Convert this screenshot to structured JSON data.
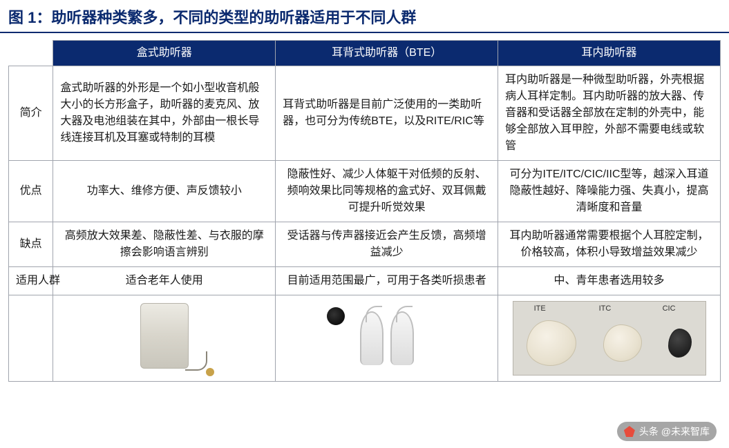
{
  "title": "图 1：助听器种类繁多，不同的类型的助听器适用于不同人群",
  "colors": {
    "brand_navy": "#0b2a6f",
    "border_gray": "#a0a4ad",
    "text": "#1a1a1a",
    "bg": "#ffffff"
  },
  "table": {
    "columns": [
      "盒式助听器",
      "耳背式助听器（BTE）",
      "耳内助听器"
    ],
    "row_headers": [
      "简介",
      "优点",
      "缺点",
      "适用人群"
    ],
    "rows": [
      [
        "盒式助听器的外形是一个如小型收音机般大小的长方形盒子，助听器的麦克风、放大器及电池组装在其中，外部由一根长导线连接耳机及耳塞或特制的耳模",
        "耳背式助听器是目前广泛使用的一类助听器，也可分为传统BTE，以及RITE/RIC等",
        "耳内助听器是一种微型助听器，外壳根据病人耳样定制。耳内助听器的放大器、传音器和受话器全部放在定制的外壳中，能够全部放入耳甲腔，外部不需要电线或软管"
      ],
      [
        "功率大、维修方便、声反馈较小",
        "隐蔽性好、减少人体躯干对低频的反射、频响效果比同等规格的盒式好、双耳佩戴可提升听觉效果",
        "可分为ITE/ITC/CIC/IIC型等，越深入耳道隐蔽性越好、降噪能力强、失真小，提高清晰度和音量"
      ],
      [
        "高频放大效果差、隐蔽性差、与衣服的摩擦会影响语言辨别",
        "受话器与传声器接近会产生反馈，高频增益减少",
        "耳内助听器通常需要根据个人耳腔定制，价格较高，体积小导致增益效果减少"
      ],
      [
        "适合老年人使用",
        "目前适用范围最广，可用于各类听损患者",
        "中、青年患者选用较多"
      ]
    ],
    "image_labels": {
      "ite": "ITE",
      "itc": "ITC",
      "cic": "CIC"
    },
    "cell_align": {
      "0": [
        "left",
        "left",
        "left"
      ],
      "1": [
        "center",
        "center",
        "center"
      ],
      "2": [
        "center",
        "center",
        "center"
      ],
      "3": [
        "center",
        "center",
        "center"
      ]
    }
  },
  "watermark": {
    "text": "头条 @未来智库"
  }
}
